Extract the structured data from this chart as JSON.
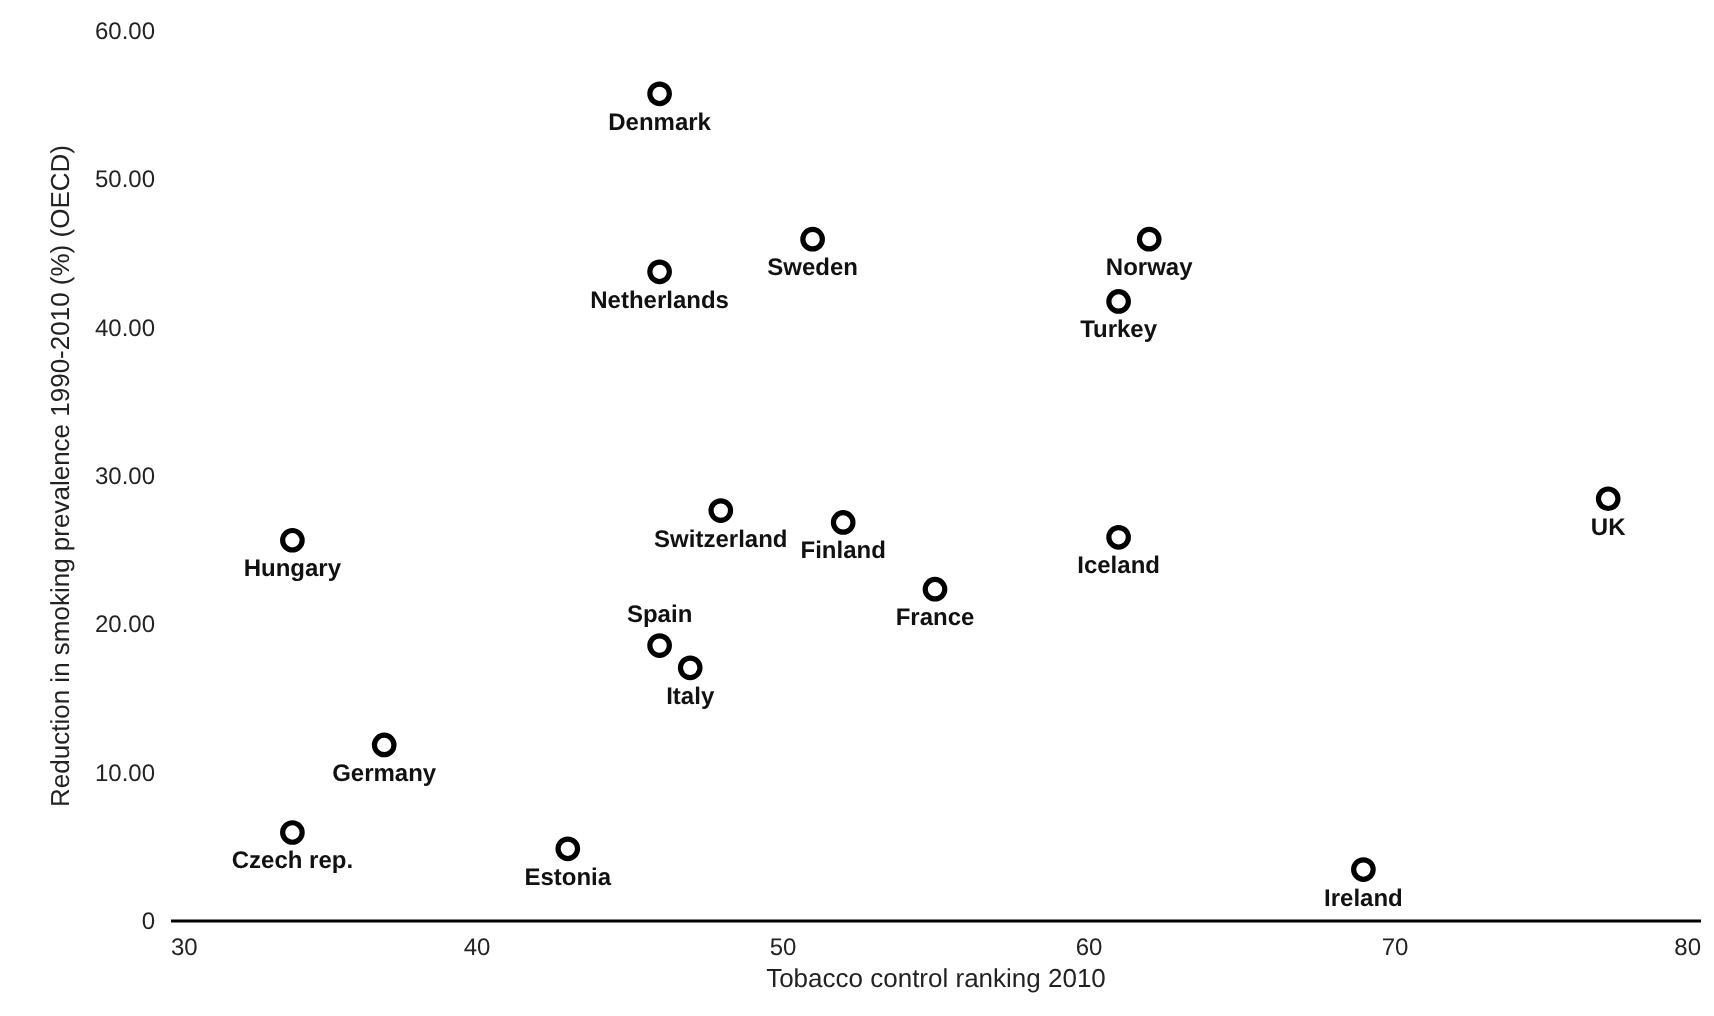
{
  "chart_data": {
    "type": "scatter",
    "xlabel": "Tobacco control ranking 2010",
    "ylabel": "Reduction in smoking prevalence 1990-2010 (%) (OECD)",
    "x": [
      46,
      46,
      51,
      62,
      61,
      48,
      52,
      34,
      61,
      77,
      55,
      46,
      47,
      37,
      34,
      43,
      69
    ],
    "series": [
      {
        "color": "#000000",
        "values": [
          55.7,
          43.7,
          45.9,
          45.9,
          41.7,
          27.6,
          26.8,
          25.6,
          25.8,
          28.4,
          22.3,
          18.5,
          17.0,
          11.8,
          5.9,
          4.8,
          3.4
        ]
      }
    ],
    "annotations": [
      {
        "text": "Denmark",
        "x": 46,
        "y": 55.7
      },
      {
        "text": "Netherlands",
        "x": 46,
        "y": 43.7
      },
      {
        "text": "Sweden",
        "x": 51,
        "y": 45.9
      },
      {
        "text": "Norway",
        "x": 62,
        "y": 45.9
      },
      {
        "text": "Turkey",
        "x": 61,
        "y": 41.7
      },
      {
        "text": "Switzerland",
        "x": 48,
        "y": 27.6
      },
      {
        "text": "Finland",
        "x": 52,
        "y": 26.8
      },
      {
        "text": "Hungary",
        "x": 34,
        "y": 25.6
      },
      {
        "text": "Iceland",
        "x": 61,
        "y": 25.8
      },
      {
        "text": "UK",
        "x": 77,
        "y": 28.4
      },
      {
        "text": "France",
        "x": 55,
        "y": 22.3
      },
      {
        "text": "Spain",
        "x": 46,
        "y": 18.5
      },
      {
        "text": "Italy",
        "x": 47,
        "y": 17.0
      },
      {
        "text": "Germany",
        "x": 37,
        "y": 11.8
      },
      {
        "text": "Czech rep.",
        "x": 34,
        "y": 5.9
      },
      {
        "text": "Estonia",
        "x": 43,
        "y": 4.8
      },
      {
        "text": "Ireland",
        "x": 69,
        "y": 3.4
      }
    ],
    "xlim": [
      30,
      80
    ],
    "xticks": [
      30,
      40,
      50,
      60,
      70,
      80
    ],
    "ylim": [
      0,
      60
    ],
    "yticks": [
      {
        "value": 0,
        "label": "0"
      },
      {
        "value": 10,
        "label": "10.00"
      },
      {
        "value": 20,
        "label": "20.00"
      },
      {
        "value": 30,
        "label": "30.00"
      },
      {
        "value": 40,
        "label": "40.00"
      },
      {
        "value": 50,
        "label": "50.00"
      },
      {
        "value": 60,
        "label": "60.00"
      }
    ],
    "grid": false,
    "marker": "circle"
  }
}
